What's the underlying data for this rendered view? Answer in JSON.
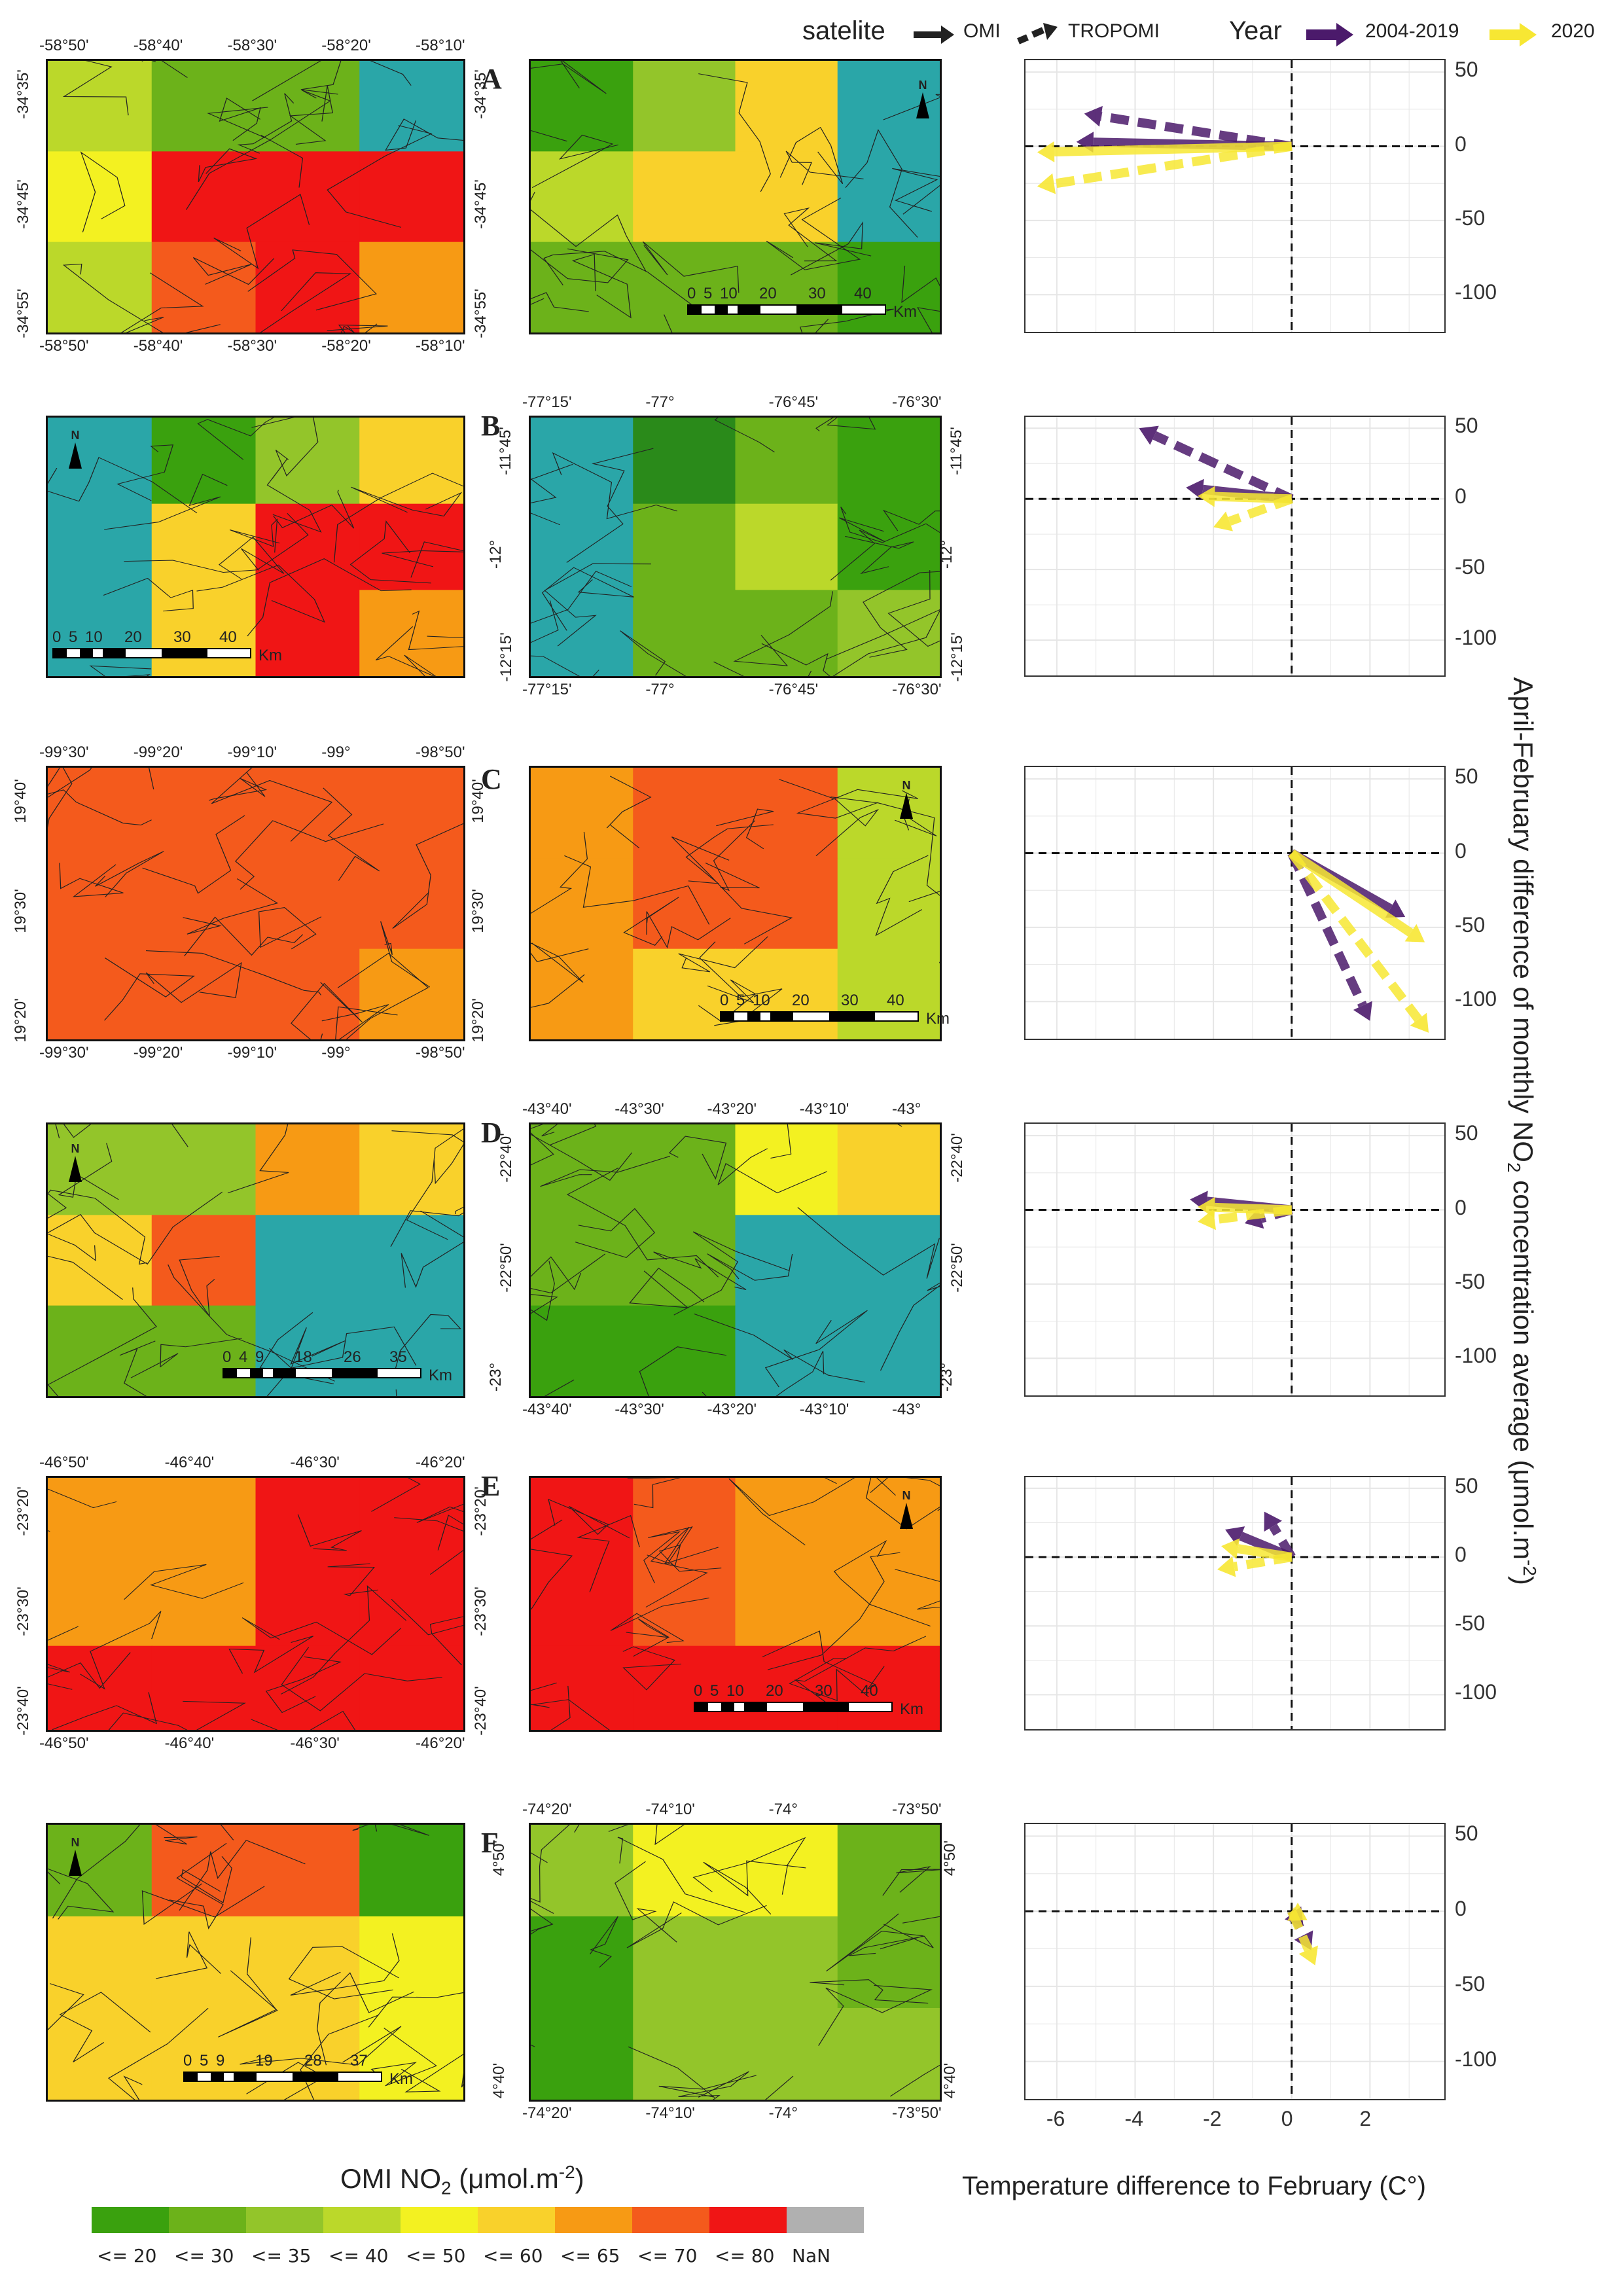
{
  "legend": {
    "satelite_label": "satelite",
    "omi_label": "OMI",
    "tropomi_label": "TROPOMI",
    "year_label": "Year",
    "year1": "2004-2019",
    "year2": "2020",
    "colors": {
      "purple": "#4b1a6b",
      "yellow": "#f7e733"
    }
  },
  "y_axis_label": "April-February difference of monthly NO",
  "y_axis_label_sub": "2",
  "y_axis_label_tail": " concentration average (μmol.m",
  "y_axis_label_sup": "-2",
  "y_axis_label_end": ")",
  "x_axis_label": "Temperature difference to February (C°)",
  "colorbar": {
    "title": "OMI NO",
    "title_sub": "2",
    "title_tail": " (μmol.m",
    "title_sup": "-2",
    "title_end": ")",
    "classes": [
      {
        "label": "<= 20",
        "color": "#3aa10e"
      },
      {
        "label": "<= 30",
        "color": "#6cb21a"
      },
      {
        "label": "<= 35",
        "color": "#93c52a"
      },
      {
        "label": "<= 40",
        "color": "#bbd82a"
      },
      {
        "label": "<= 50",
        "color": "#f3f121"
      },
      {
        "label": "<= 60",
        "color": "#f9d12b"
      },
      {
        "label": "<= 65",
        "color": "#f79a14"
      },
      {
        "label": "<= 70",
        "color": "#f45a1c"
      },
      {
        "label": "<= 80",
        "color": "#f01515"
      },
      {
        "label": "NaN",
        "color": "#b0b0b0"
      }
    ]
  },
  "panels": [
    {
      "letter": "A",
      "omi_top": [
        "-58°50'",
        "-58°40'",
        "-58°30'",
        "-58°20'",
        "-58°10'"
      ],
      "omi_bottom": [
        "-58°50'",
        "-58°40'",
        "-58°30'",
        "-58°20'",
        "-58°10'"
      ],
      "omi_left": [
        "-34°35'",
        "-34°45'",
        "-34°55'"
      ],
      "omi_right": [
        "-34°35'",
        "-34°45'",
        "-34°55'"
      ],
      "scale": [
        "0",
        "5",
        "10",
        "20",
        "30",
        "40",
        "Km"
      ]
    },
    {
      "letter": "B",
      "tro_top": [
        "-77°15'",
        "-77°",
        "-76°45'",
        "-76°30'"
      ],
      "tro_bottom": [
        "-77°15'",
        "-77°",
        "-76°45'",
        "-76°30'"
      ],
      "tro_left": [
        "-11°45'",
        "-12°",
        "-12°15'"
      ],
      "tro_right": [
        "-11°45'",
        "-12°",
        "-12°15'"
      ],
      "scale": [
        "0",
        "5",
        "10",
        "20",
        "30",
        "40",
        "Km"
      ]
    },
    {
      "letter": "C",
      "omi_top": [
        "-99°30'",
        "-99°20'",
        "-99°10'",
        "-99°",
        "-98°50'"
      ],
      "omi_bottom": [
        "-99°30'",
        "-99°20'",
        "-99°10'",
        "-99°",
        "-98°50'"
      ],
      "omi_left": [
        "19°40'",
        "19°30'",
        "19°20'"
      ],
      "omi_right": [
        "19°40'",
        "19°30'",
        "19°20'"
      ],
      "scale": [
        "0",
        "5",
        "10",
        "20",
        "30",
        "40",
        "Km"
      ]
    },
    {
      "letter": "D",
      "tro_top": [
        "-43°40'",
        "-43°30'",
        "-43°20'",
        "-43°10'",
        "-43°"
      ],
      "tro_bottom": [
        "-43°40'",
        "-43°30'",
        "-43°20'",
        "-43°10'",
        "-43°"
      ],
      "tro_left": [
        "-22°40'",
        "-22°50'",
        "-23°"
      ],
      "tro_right": [
        "-22°40'",
        "-22°50'",
        "-23°"
      ],
      "scale": [
        "0",
        "4",
        "9",
        "18",
        "26",
        "35",
        "Km"
      ]
    },
    {
      "letter": "E",
      "omi_top": [
        "-46°50'",
        "-46°40'",
        "-46°30'",
        "-46°20'"
      ],
      "omi_bottom": [
        "-46°50'",
        "-46°40'",
        "-46°30'",
        "-46°20'"
      ],
      "omi_left": [
        "-23°20'",
        "-23°30'",
        "-23°40'"
      ],
      "omi_right": [
        "-23°20'",
        "-23°30'",
        "-23°40'"
      ],
      "scale": [
        "0",
        "5",
        "10",
        "20",
        "30",
        "40",
        "Km"
      ]
    },
    {
      "letter": "F",
      "tro_top": [
        "-74°20'",
        "-74°10'",
        "-74°",
        "-73°50'"
      ],
      "tro_bottom": [
        "-74°20'",
        "-74°10'",
        "-74°",
        "-73°50'"
      ],
      "tro_left": [
        "4°50'",
        "4°40'"
      ],
      "tro_right": [
        "4°50'",
        "4°40'"
      ],
      "scale": [
        "0",
        "5",
        "9",
        "19",
        "28",
        "37",
        "Km"
      ]
    }
  ],
  "chart_data": [
    {
      "type": "arrow-vector",
      "panel": "A",
      "x_ticks": [
        "-6",
        "-4",
        "-2",
        "0",
        "2"
      ],
      "y_ticks": [
        "50",
        "0",
        "-50",
        "-100"
      ],
      "ylim": [
        -125,
        58
      ],
      "xlim": [
        -6.8,
        3.9
      ],
      "series": [
        {
          "satellite": "OMI",
          "year": "2004-2019",
          "vectors": [
            [
              0,
              0,
              -5.5,
              3
            ]
          ]
        },
        {
          "satellite": "TROPOMI",
          "year": "2004-2019",
          "vectors": [
            [
              0,
              0,
              -5.3,
              22
            ]
          ]
        },
        {
          "satellite": "OMI",
          "year": "2020",
          "vectors": [
            [
              0,
              0,
              -6.5,
              -4
            ]
          ]
        },
        {
          "satellite": "TROPOMI",
          "year": "2020",
          "vectors": [
            [
              0,
              0,
              -6.5,
              -27
            ]
          ]
        }
      ]
    },
    {
      "type": "arrow-vector",
      "panel": "B",
      "x_ticks": [
        "-6",
        "-4",
        "-2",
        "0",
        "2"
      ],
      "y_ticks": [
        "50",
        "0",
        "-50",
        "-100"
      ],
      "ylim": [
        -125,
        58
      ],
      "xlim": [
        -6.8,
        3.9
      ],
      "series": [
        {
          "satellite": "OMI",
          "year": "2004-2019",
          "vectors": [
            [
              0,
              0,
              -2.7,
              8
            ]
          ]
        },
        {
          "satellite": "TROPOMI",
          "year": "2004-2019",
          "vectors": [
            [
              0,
              0,
              -3.9,
              50
            ]
          ]
        },
        {
          "satellite": "OMI",
          "year": "2020",
          "vectors": [
            [
              0,
              0,
              -2.4,
              2
            ]
          ]
        },
        {
          "satellite": "TROPOMI",
          "year": "2020",
          "vectors": [
            [
              0,
              0,
              -2.0,
              -20
            ]
          ]
        }
      ]
    },
    {
      "type": "arrow-vector",
      "panel": "C",
      "x_ticks": [
        "-6",
        "-4",
        "-2",
        "0",
        "2"
      ],
      "y_ticks": [
        "50",
        "0",
        "-50",
        "-100"
      ],
      "ylim": [
        -125,
        58
      ],
      "xlim": [
        -6.8,
        3.9
      ],
      "series": [
        {
          "satellite": "OMI",
          "year": "2004-2019",
          "vectors": [
            [
              0,
              0,
              2.9,
              -43
            ]
          ]
        },
        {
          "satellite": "TROPOMI",
          "year": "2004-2019",
          "vectors": [
            [
              0,
              0,
              2.0,
              -113
            ]
          ]
        },
        {
          "satellite": "OMI",
          "year": "2020",
          "vectors": [
            [
              0,
              0,
              3.4,
              -60
            ]
          ]
        },
        {
          "satellite": "TROPOMI",
          "year": "2020",
          "vectors": [
            [
              0,
              0,
              3.5,
              -121
            ]
          ]
        }
      ]
    },
    {
      "type": "arrow-vector",
      "panel": "D",
      "x_ticks": [
        "-6",
        "-4",
        "-2",
        "0",
        "2"
      ],
      "y_ticks": [
        "50",
        "0",
        "-50",
        "-100"
      ],
      "ylim": [
        -125,
        58
      ],
      "xlim": [
        -6.8,
        3.9
      ],
      "series": [
        {
          "satellite": "OMI",
          "year": "2004-2019",
          "vectors": [
            [
              0,
              0,
              -2.6,
              7
            ]
          ]
        },
        {
          "satellite": "TROPOMI",
          "year": "2004-2019",
          "vectors": [
            [
              0,
              0,
              -1.2,
              -9
            ]
          ]
        },
        {
          "satellite": "OMI",
          "year": "2020",
          "vectors": [
            [
              0,
              0,
              -2.4,
              2
            ]
          ]
        },
        {
          "satellite": "TROPOMI",
          "year": "2020",
          "vectors": [
            [
              0,
              0,
              -2.4,
              -8
            ]
          ]
        }
      ]
    },
    {
      "type": "arrow-vector",
      "panel": "E",
      "x_ticks": [
        "-6",
        "-4",
        "-2",
        "0",
        "2"
      ],
      "y_ticks": [
        "50",
        "0",
        "-50",
        "-100"
      ],
      "ylim": [
        -125,
        58
      ],
      "xlim": [
        -6.8,
        3.9
      ],
      "series": [
        {
          "satellite": "OMI",
          "year": "2004-2019",
          "vectors": [
            [
              0,
              0,
              -1.7,
              20
            ]
          ]
        },
        {
          "satellite": "TROPOMI",
          "year": "2004-2019",
          "vectors": [
            [
              0,
              0,
              -0.7,
              33
            ]
          ]
        },
        {
          "satellite": "OMI",
          "year": "2020",
          "vectors": [
            [
              0,
              0,
              -1.8,
              8
            ]
          ]
        },
        {
          "satellite": "TROPOMI",
          "year": "2020",
          "vectors": [
            [
              0,
              0,
              -1.9,
              -9
            ]
          ]
        }
      ]
    },
    {
      "type": "arrow-vector",
      "panel": "F",
      "x_ticks": [
        "-6",
        "-4",
        "-2",
        "0",
        "2"
      ],
      "y_ticks": [
        "50",
        "0",
        "-50",
        "-100"
      ],
      "ylim": [
        -125,
        58
      ],
      "xlim": [
        -6.8,
        3.9
      ],
      "series": [
        {
          "satellite": "OMI",
          "year": "2004-2019",
          "vectors": [
            [
              0,
              0,
              0.3,
              -10
            ]
          ]
        },
        {
          "satellite": "TROPOMI",
          "year": "2004-2019",
          "vectors": [
            [
              0,
              0,
              0.5,
              -26
            ]
          ]
        },
        {
          "satellite": "OMI",
          "year": "2020",
          "vectors": [
            [
              0,
              0,
              0.4,
              -6
            ]
          ]
        },
        {
          "satellite": "TROPOMI",
          "year": "2020",
          "vectors": [
            [
              0,
              0,
              0.6,
              -36
            ]
          ]
        }
      ]
    }
  ]
}
